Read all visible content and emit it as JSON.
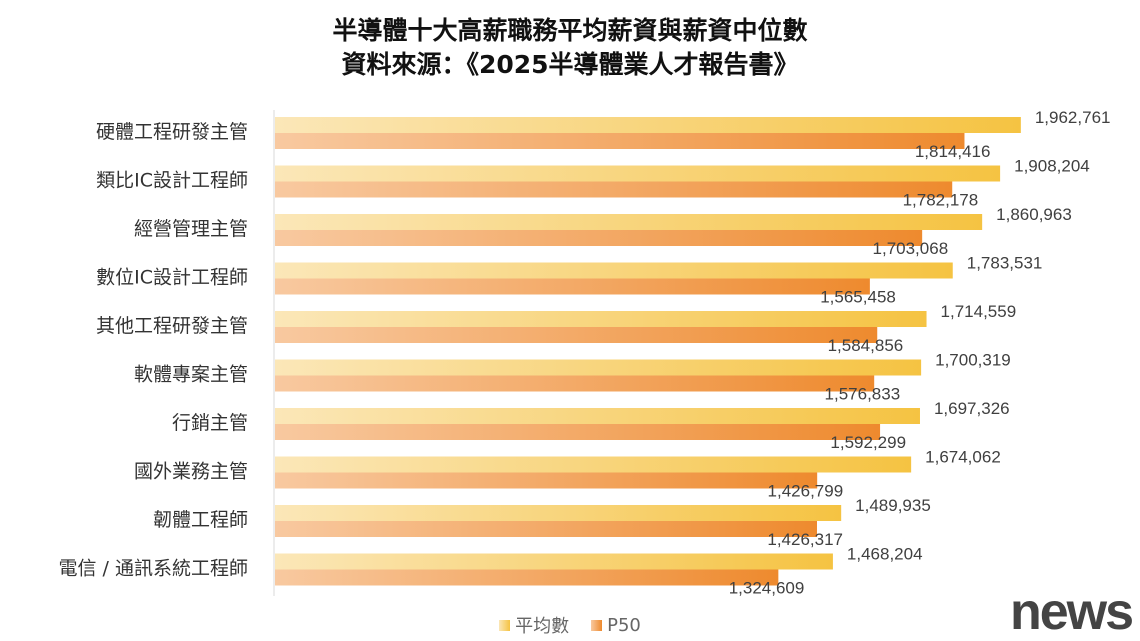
{
  "chart_data": {
    "type": "bar",
    "orientation": "horizontal",
    "title": "半導體十大高薪職務平均薪資與薪資中位數",
    "subtitle": "資料來源：《2025半導體業人才報告書》",
    "categories": [
      "硬體工程研發主管",
      "類比IC設計工程師",
      "經營管理主管",
      "數位IC設計工程師",
      "其他工程研發主管",
      "軟體專案主管",
      "行銷主管",
      "國外業務主管",
      "韌體工程師",
      "電信 / 通訊系統工程師"
    ],
    "series": [
      {
        "name": "平均數",
        "color": "#F5C342",
        "values": [
          1962761,
          1908204,
          1860963,
          1783531,
          1714559,
          1700319,
          1697326,
          1674062,
          1489935,
          1468204
        ],
        "value_labels": [
          "1,962,761",
          "1,908,204",
          "1,860,963",
          "1,783,531",
          "1,714,559",
          "1,700,319",
          "1,697,326",
          "1,674,062",
          "1,489,935",
          "1,468,204"
        ]
      },
      {
        "name": "P50",
        "color": "#EE8A2E",
        "values": [
          1814416,
          1782178,
          1703068,
          1565458,
          1584856,
          1576833,
          1592299,
          1426799,
          1426317,
          1324609
        ],
        "value_labels": [
          "1,814,416",
          "1,782,178",
          "1,703,068",
          "1,565,458",
          "1,584,856",
          "1,576,833",
          "1,592,299",
          "1,426,799",
          "1,426,317",
          "1,324,609"
        ]
      }
    ],
    "xlim": [
      0,
      2000000
    ],
    "grid": false,
    "legend_position": "bottom",
    "watermark": "news"
  }
}
